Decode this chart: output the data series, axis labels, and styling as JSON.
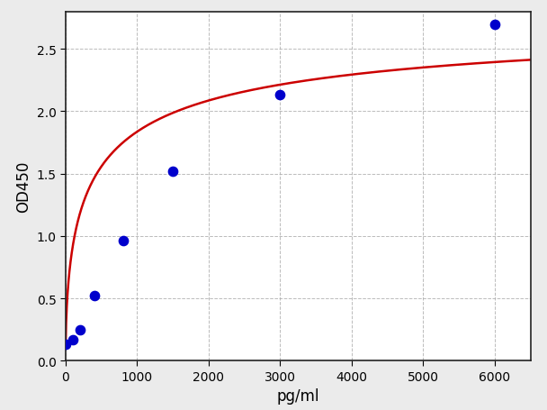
{
  "x_data": [
    0,
    100,
    200,
    400,
    800,
    1500,
    3000,
    6000
  ],
  "y_data": [
    0.13,
    0.17,
    0.25,
    0.52,
    0.96,
    1.52,
    2.13,
    2.7
  ],
  "point_color": "#0000CC",
  "curve_color": "#CC0000",
  "xlabel": "pg/ml",
  "ylabel": "OD450",
  "xlim": [
    0,
    6500
  ],
  "ylim": [
    0,
    2.8
  ],
  "xticks": [
    0,
    1000,
    2000,
    3000,
    4000,
    5000,
    6000
  ],
  "yticks": [
    0.0,
    0.5,
    1.0,
    1.5,
    2.0,
    2.5
  ],
  "background_color": "#EBEBEB",
  "plot_bg_color": "#FFFFFF",
  "grid_color": "#AAAAAA",
  "point_size": 55,
  "curve_linewidth": 1.8,
  "spine_color": "#222222",
  "xlabel_fontsize": 12,
  "ylabel_fontsize": 12,
  "tick_fontsize": 10
}
